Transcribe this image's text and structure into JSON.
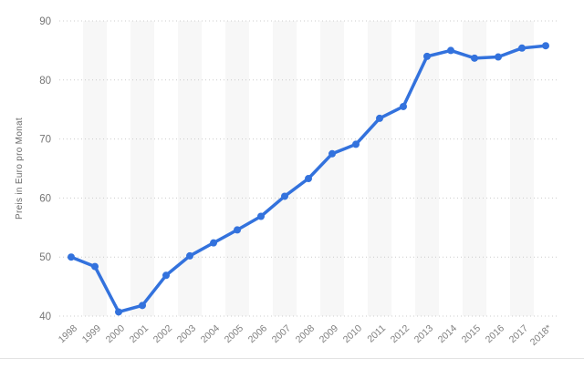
{
  "chart_data": {
    "type": "line",
    "title": "",
    "xlabel": "",
    "ylabel": "Preis in Euro pro Monat",
    "categories": [
      "1998",
      "1999",
      "2000",
      "2001",
      "2002",
      "2003",
      "2004",
      "2005",
      "2006",
      "2007",
      "2008",
      "2009",
      "2010",
      "2011",
      "2012",
      "2013",
      "2014",
      "2015",
      "2016",
      "2017",
      "2018*"
    ],
    "values": [
      50.0,
      48.4,
      40.7,
      41.8,
      46.9,
      50.2,
      52.4,
      54.6,
      56.9,
      60.3,
      63.3,
      67.5,
      69.1,
      73.5,
      75.5,
      84.0,
      85.0,
      83.7,
      83.9,
      85.4,
      85.8
    ],
    "ylim": [
      40,
      90
    ],
    "yticks": [
      90,
      80,
      70,
      60,
      50,
      40
    ],
    "grid": "horizontal-dotted",
    "legend": "none",
    "colors": {
      "line": "#3372dd",
      "marker": "#3372dd",
      "band": "#f7f7f7",
      "gridline": "#cccccc",
      "tick_text": "#7f7f7f",
      "axis_title_text": "#6b6b6b",
      "divider": "#e3e3e3",
      "background": "#ffffff"
    }
  }
}
